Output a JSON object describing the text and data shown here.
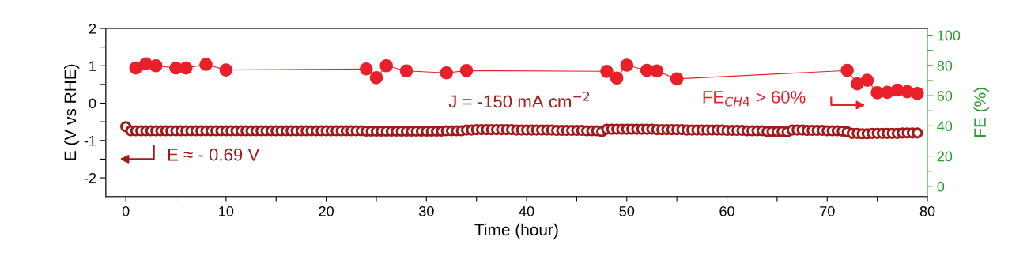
{
  "chart_data": {
    "type": "scatter",
    "xlabel": "Time (hour)",
    "ylabel": "E (V vs RHE)",
    "y2label": "FE (%)",
    "xlim": [
      -2,
      80
    ],
    "xticks": [
      0,
      {
        "value": 5,
        "label": null
      },
      10,
      {
        "value": 15,
        "label": null
      },
      20,
      {
        "value": 25,
        "label": null
      },
      30,
      {
        "value": 35,
        "label": null
      },
      40,
      {
        "value": 45,
        "label": null
      },
      50,
      {
        "value": 55,
        "label": null
      },
      60,
      {
        "value": 65,
        "label": null
      },
      70,
      {
        "value": 75,
        "label": null
      },
      80
    ],
    "ylim": [
      -2.5,
      2
    ],
    "yticks": [
      -2,
      {
        "value": -1.5,
        "label": null
      },
      -1,
      {
        "value": -0.5,
        "label": null
      },
      0,
      {
        "value": 0.5,
        "label": null
      },
      1,
      {
        "value": 1.5,
        "label": null
      },
      2
    ],
    "y2lim": [
      -6.7,
      104.5
    ],
    "y2ticks": [
      0,
      {
        "value": 10,
        "label": null
      },
      20,
      {
        "value": 30,
        "label": null
      },
      40,
      {
        "value": 50,
        "label": null
      },
      60,
      {
        "value": 70,
        "label": null
      },
      80,
      {
        "value": 90,
        "label": null
      },
      100
    ],
    "grid": false,
    "annotations": [
      "J = -150 mA cm$^{−2}$",
      "FE$_{CH4}$ > 60%",
      "E ≈ - 0.69 V"
    ],
    "series": [
      {
        "color": "#a31a1a",
        "marker": "circle",
        "x": [
          0,
          0.5,
          1,
          1.5,
          2,
          2.5,
          3,
          3.5,
          4,
          4.5,
          5,
          5.5,
          6,
          6.5,
          7,
          7.5,
          8,
          8.5,
          9,
          9.5,
          10,
          10.5,
          11,
          11.5,
          12,
          12.5,
          13,
          13.5,
          14,
          14.5,
          15,
          15.5,
          16,
          16.5,
          17,
          17.5,
          18,
          18.5,
          19,
          19.5,
          20,
          20.5,
          21,
          21.5,
          22,
          22.5,
          23,
          23.5,
          24,
          24.5,
          25,
          25.5,
          26,
          26.5,
          27,
          27.5,
          28,
          28.5,
          29,
          29.5,
          30,
          30.5,
          31,
          31.5,
          32,
          32.5,
          33,
          33.5,
          34,
          34.5,
          35,
          35.5,
          36,
          36.5,
          37,
          37.5,
          38,
          38.5,
          39,
          39.5,
          40,
          40.5,
          41,
          41.5,
          42,
          42.5,
          43,
          43.5,
          44,
          44.5,
          45,
          45.5,
          46,
          46.5,
          47,
          47.5,
          48,
          48.5,
          49,
          49.5,
          50,
          50.5,
          51,
          51.5,
          52,
          52.5,
          53,
          53.5,
          54,
          54.5,
          55,
          55.5,
          56,
          56.5,
          57,
          57.5,
          58,
          58.5,
          59,
          59.5,
          60,
          60.5,
          61,
          61.5,
          62,
          62.5,
          63,
          63.5,
          64,
          64.5,
          65,
          65.5,
          66,
          66.5,
          67,
          67.5,
          68,
          68.5,
          69,
          69.5,
          70,
          70.5,
          71,
          71.5,
          72,
          72.5,
          73,
          73.5,
          74,
          74.5,
          75,
          75.5,
          76,
          76.5,
          77,
          77.5,
          78,
          78.5,
          79
        ],
        "values": [
          -0.63,
          -0.74,
          -0.74,
          -0.74,
          -0.74,
          -0.74,
          -0.74,
          -0.74,
          -0.74,
          -0.74,
          -0.74,
          -0.74,
          -0.74,
          -0.74,
          -0.74,
          -0.74,
          -0.74,
          -0.74,
          -0.74,
          -0.74,
          -0.74,
          -0.74,
          -0.74,
          -0.74,
          -0.74,
          -0.74,
          -0.74,
          -0.74,
          -0.74,
          -0.74,
          -0.74,
          -0.74,
          -0.74,
          -0.74,
          -0.74,
          -0.74,
          -0.74,
          -0.74,
          -0.74,
          -0.74,
          -0.74,
          -0.74,
          -0.74,
          -0.74,
          -0.74,
          -0.74,
          -0.74,
          -0.74,
          -0.75,
          -0.75,
          -0.75,
          -0.75,
          -0.75,
          -0.75,
          -0.75,
          -0.75,
          -0.75,
          -0.75,
          -0.75,
          -0.75,
          -0.75,
          -0.75,
          -0.75,
          -0.75,
          -0.74,
          -0.74,
          -0.74,
          -0.74,
          -0.72,
          -0.72,
          -0.71,
          -0.71,
          -0.71,
          -0.71,
          -0.71,
          -0.71,
          -0.71,
          -0.71,
          -0.72,
          -0.72,
          -0.72,
          -0.72,
          -0.72,
          -0.72,
          -0.72,
          -0.72,
          -0.73,
          -0.73,
          -0.73,
          -0.73,
          -0.73,
          -0.73,
          -0.74,
          -0.74,
          -0.74,
          -0.76,
          -0.7,
          -0.7,
          -0.7,
          -0.7,
          -0.7,
          -0.7,
          -0.7,
          -0.7,
          -0.7,
          -0.7,
          -0.71,
          -0.71,
          -0.71,
          -0.71,
          -0.71,
          -0.71,
          -0.72,
          -0.72,
          -0.72,
          -0.72,
          -0.72,
          -0.72,
          -0.72,
          -0.72,
          -0.73,
          -0.73,
          -0.73,
          -0.73,
          -0.74,
          -0.74,
          -0.74,
          -0.74,
          -0.76,
          -0.76,
          -0.76,
          -0.76,
          -0.77,
          -0.72,
          -0.72,
          -0.72,
          -0.73,
          -0.73,
          -0.73,
          -0.73,
          -0.74,
          -0.74,
          -0.74,
          -0.75,
          -0.77,
          -0.81,
          -0.81,
          -0.82,
          -0.82,
          -0.81,
          -0.81,
          -0.81,
          -0.81,
          -0.81,
          -0.81,
          -0.8,
          -0.8,
          -0.8,
          -0.8
        ]
      },
      {
        "color": "#e8202a",
        "marker": "circle",
        "type": "line",
        "line_style": "solid",
        "axis": "y2",
        "x": [
          1,
          2,
          3,
          5,
          6,
          8,
          10,
          24,
          25,
          26,
          28,
          32,
          34,
          48,
          49,
          50,
          52,
          53,
          55,
          72,
          73,
          74,
          75,
          76,
          77,
          78,
          79
        ],
        "values": [
          78.3,
          81.1,
          79.8,
          78.3,
          78.3,
          80.7,
          77.0,
          77.7,
          71.9,
          79.8,
          76.4,
          75.1,
          76.6,
          76.1,
          71.7,
          80.2,
          76.7,
          76.3,
          71.1,
          76.7,
          67.8,
          70.2,
          62.0,
          62.2,
          63.7,
          62.6,
          61.5
        ]
      }
    ]
  }
}
